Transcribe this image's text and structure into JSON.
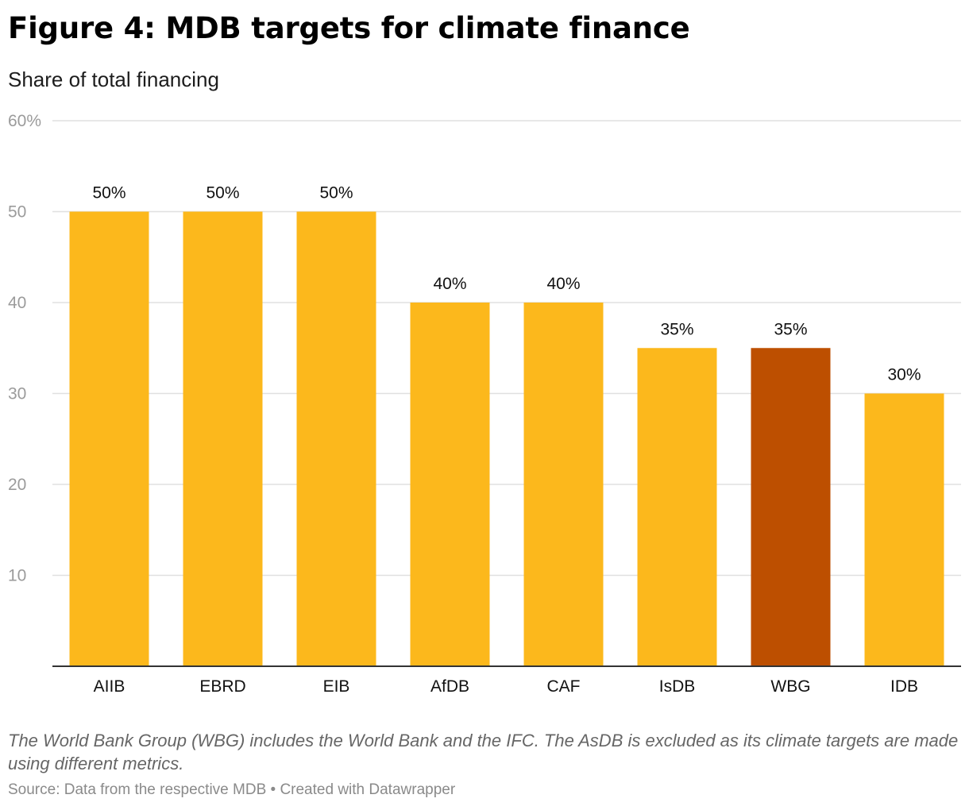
{
  "header": {
    "title": "Figure 4: MDB targets for climate finance",
    "subtitle": "Share of total financing"
  },
  "footer": {
    "notes": "The World Bank Group (WBG) includes the World Bank and the IFC. The AsDB is excluded as its climate targets are made using different metrics.",
    "source": "Source: Data from the respective MDB • Created with Datawrapper"
  },
  "colors": {
    "default_bar": "#fcb81c",
    "highlight_bar": "#bd4f00",
    "gridline": "#e0e0e0",
    "baseline": "#333333"
  },
  "chart_data": {
    "type": "bar",
    "categories": [
      "AIIB",
      "EBRD",
      "EIB",
      "AfDB",
      "CAF",
      "IsDB",
      "WBG",
      "IDB"
    ],
    "values": [
      50,
      50,
      50,
      40,
      40,
      35,
      35,
      30
    ],
    "value_labels": [
      "50%",
      "50%",
      "50%",
      "40%",
      "40%",
      "35%",
      "35%",
      "30%"
    ],
    "highlight": [
      "WBG"
    ],
    "ylim": [
      0,
      60
    ],
    "y_ticks": [
      10,
      20,
      30,
      40,
      50,
      60
    ],
    "y_tick_labels": [
      "10",
      "20",
      "30",
      "40",
      "50",
      "60%"
    ],
    "grid": true
  }
}
